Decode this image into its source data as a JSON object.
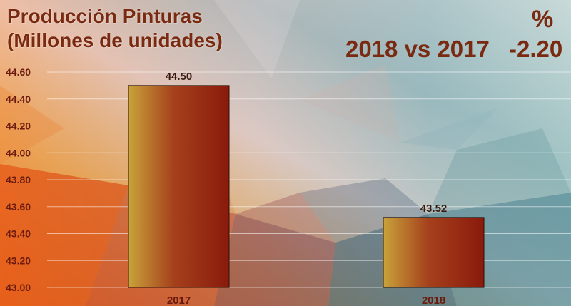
{
  "header": {
    "title_line1": "Producción Pinturas",
    "title_line2": "(Millones de unidades)",
    "comparison": "2018 vs 2017",
    "percent_symbol": "%",
    "percent_change": "-2.20"
  },
  "colors": {
    "text": "#7a2a10",
    "bar_light": "#c9a23a",
    "bar_dark": "#8a1a0c"
  },
  "chart_data": {
    "type": "bar",
    "categories": [
      "2017",
      "2018"
    ],
    "values": [
      44.5,
      43.52
    ],
    "value_labels": [
      "44.50",
      "43.52"
    ],
    "ylim": [
      43.0,
      44.6
    ],
    "yticks": [
      "43.00",
      "43.20",
      "43.40",
      "43.60",
      "43.80",
      "44.00",
      "44.20",
      "44.40",
      "44.60"
    ],
    "grid": true
  }
}
